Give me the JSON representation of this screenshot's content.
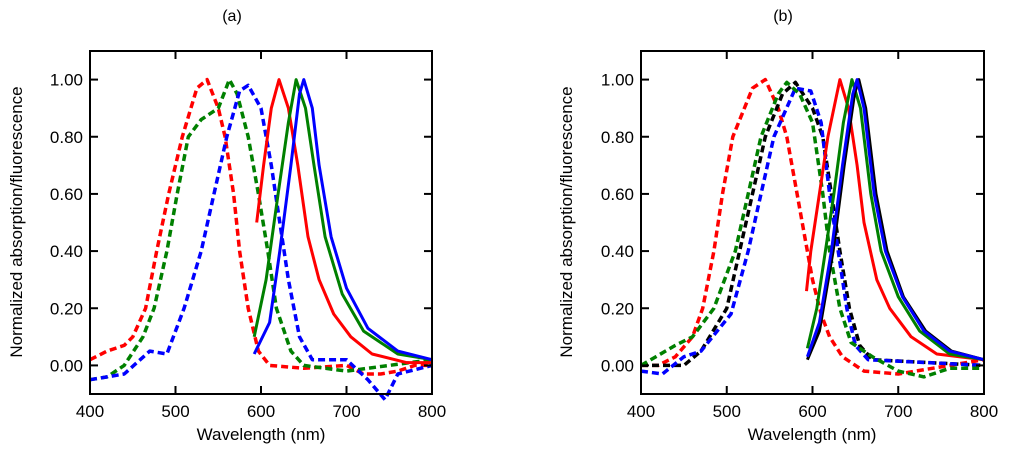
{
  "colors": {
    "red": "#ff0000",
    "green": "#008000",
    "blue": "#0000ff",
    "black": "#000000"
  },
  "chart_data": [
    {
      "type": "line",
      "title": "(a)",
      "xlabel": "Wavelength (nm)",
      "ylabel": "Normalized absorption/fluorescence",
      "xlim": [
        400,
        800
      ],
      "ylim": [
        -0.1,
        1.1
      ],
      "xticks": [
        400,
        500,
        600,
        700,
        800
      ],
      "xtick_labels": [
        "400",
        "500",
        "600",
        "700",
        "800"
      ],
      "yticks": [
        0.0,
        0.2,
        0.4,
        0.6,
        0.8,
        1.0
      ],
      "ytick_labels": [
        "0.00",
        "0.20",
        "0.40",
        "0.60",
        "0.80",
        "1.00"
      ],
      "grid": false,
      "legend": "none",
      "series": [
        {
          "name": "red absorption",
          "color": "red",
          "style": "dashed",
          "x": [
            400,
            420,
            440,
            450,
            465,
            478,
            492,
            508,
            525,
            537,
            550,
            558,
            568,
            575,
            585,
            597,
            610,
            650,
            700,
            720,
            740,
            760,
            780,
            800
          ],
          "y": [
            0.02,
            0.05,
            0.07,
            0.1,
            0.2,
            0.4,
            0.6,
            0.8,
            0.97,
            1.0,
            0.9,
            0.8,
            0.6,
            0.4,
            0.2,
            0.05,
            0.0,
            -0.01,
            0.0,
            -0.03,
            -0.03,
            -0.02,
            0.0,
            0.0
          ]
        },
        {
          "name": "green absorption",
          "color": "green",
          "style": "dashed",
          "x": [
            400,
            420,
            440,
            462,
            475,
            490,
            502,
            515,
            530,
            550,
            563,
            572,
            585,
            597,
            608,
            618,
            635,
            650,
            700,
            750,
            800
          ],
          "y": [
            -0.05,
            -0.04,
            0.0,
            0.1,
            0.2,
            0.4,
            0.6,
            0.8,
            0.86,
            0.9,
            1.0,
            0.95,
            0.8,
            0.6,
            0.4,
            0.2,
            0.05,
            0.0,
            -0.02,
            0.0,
            0.02
          ]
        },
        {
          "name": "blue absorption",
          "color": "blue",
          "style": "dashed",
          "x": [
            400,
            420,
            440,
            470,
            490,
            500,
            510,
            530,
            545,
            560,
            575,
            585,
            600,
            612,
            622,
            632,
            645,
            660,
            700,
            725,
            745,
            760,
            800
          ],
          "y": [
            -0.05,
            -0.04,
            -0.03,
            0.05,
            0.04,
            0.12,
            0.2,
            0.4,
            0.6,
            0.8,
            0.96,
            0.98,
            0.9,
            0.7,
            0.5,
            0.3,
            0.1,
            0.02,
            0.02,
            -0.05,
            -0.12,
            -0.03,
            0.0
          ]
        },
        {
          "name": "red fluorescence",
          "color": "red",
          "style": "solid",
          "x": [
            595,
            603,
            612,
            621,
            632,
            643,
            655,
            668,
            685,
            705,
            730,
            770,
            800
          ],
          "y": [
            0.5,
            0.7,
            0.9,
            1.0,
            0.9,
            0.7,
            0.45,
            0.3,
            0.18,
            0.1,
            0.04,
            0.01,
            0.01
          ]
        },
        {
          "name": "green fluorescence",
          "color": "green",
          "style": "solid",
          "x": [
            592,
            606,
            620,
            632,
            641,
            652,
            662,
            675,
            695,
            720,
            760,
            800
          ],
          "y": [
            0.1,
            0.3,
            0.6,
            0.85,
            1.0,
            0.9,
            0.7,
            0.45,
            0.25,
            0.12,
            0.04,
            0.02
          ]
        },
        {
          "name": "blue fluorescence",
          "color": "blue",
          "style": "solid",
          "x": [
            592,
            610,
            622,
            635,
            645,
            650,
            660,
            668,
            682,
            700,
            725,
            760,
            800
          ],
          "y": [
            0.04,
            0.15,
            0.4,
            0.7,
            0.95,
            1.0,
            0.9,
            0.7,
            0.45,
            0.27,
            0.13,
            0.05,
            0.02
          ]
        }
      ]
    },
    {
      "type": "line",
      "title": "(b)",
      "xlabel": "Wavelength (nm)",
      "ylabel": "Normalized absorption/fluorescence",
      "xlim": [
        400,
        800
      ],
      "ylim": [
        -0.1,
        1.1
      ],
      "xticks": [
        400,
        500,
        600,
        700,
        800
      ],
      "xtick_labels": [
        "400",
        "500",
        "600",
        "700",
        "800"
      ],
      "yticks": [
        0.0,
        0.2,
        0.4,
        0.6,
        0.8,
        1.0
      ],
      "ytick_labels": [
        "0.00",
        "0.20",
        "0.40",
        "0.60",
        "0.80",
        "1.00"
      ],
      "grid": false,
      "legend": "none",
      "series": [
        {
          "name": "red absorption",
          "color": "red",
          "style": "dashed",
          "x": [
            400,
            420,
            440,
            460,
            472,
            485,
            495,
            507,
            530,
            545,
            560,
            570,
            582,
            588,
            600,
            610,
            620,
            635,
            660,
            700,
            760,
            800
          ],
          "y": [
            0.0,
            0.0,
            0.03,
            0.1,
            0.2,
            0.4,
            0.6,
            0.8,
            0.97,
            1.0,
            0.9,
            0.8,
            0.6,
            0.5,
            0.3,
            0.18,
            0.1,
            0.03,
            -0.02,
            -0.03,
            0.0,
            0.02
          ]
        },
        {
          "name": "black absorption",
          "color": "black",
          "style": "dashed",
          "x": [
            400,
            450,
            470,
            500,
            515,
            530,
            545,
            565,
            580,
            600,
            612,
            622,
            632,
            643,
            655,
            670,
            800
          ],
          "y": [
            0.0,
            0.0,
            0.05,
            0.2,
            0.4,
            0.6,
            0.8,
            0.95,
            0.99,
            0.9,
            0.8,
            0.6,
            0.4,
            0.2,
            0.07,
            0.02,
            0.0
          ]
        },
        {
          "name": "blue absorption",
          "color": "blue",
          "style": "dashed",
          "x": [
            400,
            425,
            450,
            470,
            505,
            525,
            540,
            555,
            580,
            598,
            610,
            620,
            630,
            640,
            650,
            665,
            800
          ],
          "y": [
            -0.02,
            -0.03,
            0.03,
            0.05,
            0.18,
            0.4,
            0.6,
            0.8,
            0.97,
            0.96,
            0.85,
            0.6,
            0.4,
            0.2,
            0.07,
            0.02,
            0.0
          ]
        },
        {
          "name": "green absorption",
          "color": "green",
          "style": "dashed",
          "x": [
            400,
            440,
            460,
            485,
            510,
            525,
            540,
            560,
            570,
            585,
            600,
            612,
            620,
            632,
            645,
            670,
            700,
            730,
            760,
            800
          ],
          "y": [
            0.0,
            0.07,
            0.1,
            0.2,
            0.4,
            0.6,
            0.8,
            0.95,
            0.99,
            0.95,
            0.85,
            0.6,
            0.4,
            0.2,
            0.08,
            0.03,
            -0.02,
            -0.04,
            -0.01,
            -0.01
          ]
        },
        {
          "name": "red fluorescence",
          "color": "red",
          "style": "solid",
          "x": [
            593,
            598,
            608,
            618,
            632,
            642,
            652,
            660,
            675,
            690,
            715,
            745,
            800
          ],
          "y": [
            0.26,
            0.4,
            0.6,
            0.8,
            1.0,
            0.9,
            0.7,
            0.5,
            0.3,
            0.2,
            0.1,
            0.04,
            0.02
          ]
        },
        {
          "name": "green fluorescence",
          "color": "green",
          "style": "solid",
          "x": [
            594,
            605,
            615,
            625,
            636,
            646,
            656,
            668,
            680,
            700,
            725,
            760,
            800
          ],
          "y": [
            0.06,
            0.2,
            0.4,
            0.6,
            0.85,
            1.0,
            0.9,
            0.6,
            0.4,
            0.24,
            0.12,
            0.04,
            0.02
          ]
        },
        {
          "name": "black fluorescence",
          "color": "black",
          "style": "solid",
          "x": [
            594,
            608,
            624,
            637,
            649,
            654,
            662,
            674,
            687,
            706,
            732,
            762,
            800
          ],
          "y": [
            0.02,
            0.12,
            0.4,
            0.7,
            0.95,
            1.0,
            0.9,
            0.6,
            0.4,
            0.24,
            0.12,
            0.05,
            0.02
          ]
        },
        {
          "name": "blue fluorescence",
          "color": "blue",
          "style": "solid",
          "x": [
            594,
            608,
            622,
            635,
            647,
            652,
            660,
            672,
            685,
            705,
            730,
            760,
            800
          ],
          "y": [
            0.03,
            0.15,
            0.4,
            0.7,
            0.95,
            1.0,
            0.9,
            0.6,
            0.4,
            0.24,
            0.12,
            0.05,
            0.02
          ]
        }
      ]
    }
  ]
}
